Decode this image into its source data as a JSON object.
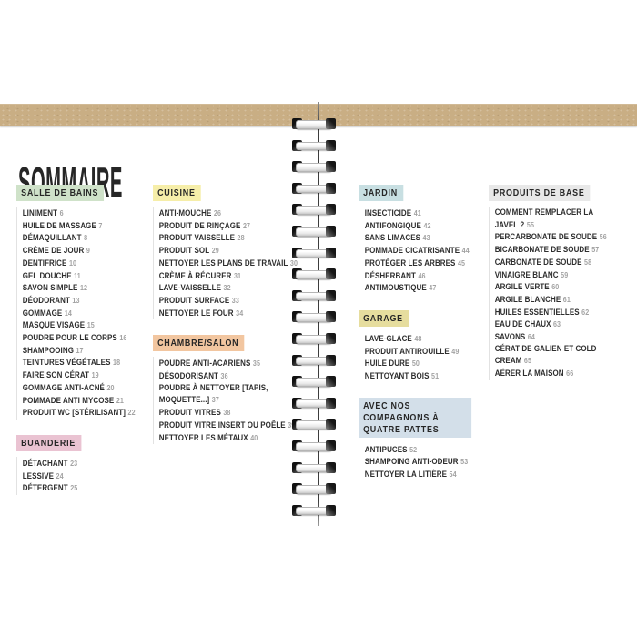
{
  "page": {
    "title": "SOMMAIRE"
  },
  "colors": {
    "kraft_band": "#c9ae84",
    "title_text": "#262626",
    "item_text": "#2e2e2e",
    "page_number": "#a2a2a2",
    "list_rule": "#dcdcdc"
  },
  "binding": {
    "rings": 19
  },
  "sections": [
    {
      "id": "salle-de-bains",
      "label": "SALLE DE BAINS",
      "color": "#cfe2c9",
      "column": 1,
      "items": [
        {
          "t": "LINIMENT",
          "p": "6"
        },
        {
          "t": "HUILE DE MASSAGE",
          "p": "7"
        },
        {
          "t": "DÉMAQUILLANT",
          "p": "8"
        },
        {
          "t": "CRÈME DE JOUR",
          "p": "9"
        },
        {
          "t": "DENTIFRICE",
          "p": "10"
        },
        {
          "t": "GEL DOUCHE",
          "p": "11"
        },
        {
          "t": "SAVON SIMPLE",
          "p": "12"
        },
        {
          "t": "DÉODORANT",
          "p": "13"
        },
        {
          "t": "GOMMAGE",
          "p": "14"
        },
        {
          "t": "MASQUE VISAGE",
          "p": "15"
        },
        {
          "t": "POUDRE POUR LE CORPS",
          "p": "16"
        },
        {
          "t": "SHAMPOOING",
          "p": "17"
        },
        {
          "t": "TEINTURES VÉGÉTALES",
          "p": "18"
        },
        {
          "t": "FAIRE SON CÉRAT",
          "p": "19"
        },
        {
          "t": "GOMMAGE ANTI-ACNÉ",
          "p": "20"
        },
        {
          "t": "POMMADE ANTI MYCOSE",
          "p": "21"
        },
        {
          "t": "PRODUIT WC [STÉRILISANT]",
          "p": "22"
        }
      ]
    },
    {
      "id": "buanderie",
      "label": "BUANDERIE",
      "color": "#eac3d2",
      "column": 1,
      "items": [
        {
          "t": "DÉTACHANT",
          "p": "23"
        },
        {
          "t": "LESSIVE",
          "p": "24"
        },
        {
          "t": "DÉTERGENT",
          "p": "25"
        }
      ]
    },
    {
      "id": "cuisine",
      "label": "CUISINE",
      "color": "#f6eea9",
      "column": 2,
      "items": [
        {
          "t": "ANTI-MOUCHE",
          "p": "26"
        },
        {
          "t": "PRODUIT DE RINÇAGE",
          "p": "27"
        },
        {
          "t": "PRODUIT VAISSELLE",
          "p": "28"
        },
        {
          "t": "PRODUIT SOL",
          "p": "29"
        },
        {
          "t": "NETTOYER LES PLANS DE TRAVAIL",
          "p": "30"
        },
        {
          "t": "CRÈME À RÉCURER",
          "p": "31"
        },
        {
          "t": "LAVE-VAISSELLE",
          "p": "32"
        },
        {
          "t": "PRODUIT SURFACE",
          "p": "33"
        },
        {
          "t": "NETTOYER LE FOUR",
          "p": "34"
        }
      ]
    },
    {
      "id": "chambre-salon",
      "label": "CHAMBRE/SALON",
      "color": "#f2c6a0",
      "column": 2,
      "items": [
        {
          "t": "POUDRE ANTI-ACARIENS",
          "p": "35"
        },
        {
          "t": "DÉSODORISANT",
          "p": "36"
        },
        {
          "t": "POUDRE À NETTOYER [TAPIS,\nMOQUETTE...]",
          "p": "37"
        },
        {
          "t": "PRODUIT VITRES",
          "p": "38"
        },
        {
          "t": "PRODUIT VITRE INSERT OU POÊLE",
          "p": "39"
        },
        {
          "t": "NETTOYER LES MÉTAUX",
          "p": "40"
        }
      ]
    },
    {
      "id": "jardin",
      "label": "JARDIN",
      "color": "#c8dfe2",
      "column": 3,
      "items": [
        {
          "t": "INSECTICIDE",
          "p": "41"
        },
        {
          "t": "ANTIFONGIQUE",
          "p": "42"
        },
        {
          "t": "SANS LIMACES",
          "p": "43"
        },
        {
          "t": "POMMADE CICATRISANTE",
          "p": "44"
        },
        {
          "t": "PROTÉGER LES ARBRES",
          "p": "45"
        },
        {
          "t": "DÉSHERBANT",
          "p": "46"
        },
        {
          "t": "ANTIMOUSTIQUE",
          "p": "47"
        }
      ]
    },
    {
      "id": "garage",
      "label": "GARAGE",
      "color": "#e6dd9e",
      "column": 3,
      "items": [
        {
          "t": "LAVE-GLACE",
          "p": "48"
        },
        {
          "t": "PRODUIT ANTIROUILLE",
          "p": "49"
        },
        {
          "t": "HUILE DURE",
          "p": "50"
        },
        {
          "t": "NETTOYANT BOIS",
          "p": "51"
        }
      ]
    },
    {
      "id": "compagnons",
      "label": "AVEC NOS COMPAGNONS À QUATRE PATTES",
      "color": "#d3dfe9",
      "column": 3,
      "items": [
        {
          "t": "ANTIPUCES",
          "p": "52"
        },
        {
          "t": "SHAMPOING ANTI-ODEUR",
          "p": "53"
        },
        {
          "t": "NETTOYER LA LITIÈRE",
          "p": "54"
        }
      ]
    },
    {
      "id": "produits-de-base",
      "label": "PRODUITS DE BASE",
      "color": "#e8e8e8",
      "column": 4,
      "items": [
        {
          "t": "COMMENT REMPLACER LA\nJAVEL ?",
          "p": "55"
        },
        {
          "t": "PERCARBONATE DE SOUDE",
          "p": "56"
        },
        {
          "t": "BICARBONATE DE SOUDE",
          "p": "57"
        },
        {
          "t": "CARBONATE DE SOUDE",
          "p": "58"
        },
        {
          "t": "VINAIGRE BLANC",
          "p": "59"
        },
        {
          "t": "ARGILE VERTE",
          "p": "60"
        },
        {
          "t": "ARGILE BLANCHE",
          "p": "61"
        },
        {
          "t": "HUILES ESSENTIELLES",
          "p": "62"
        },
        {
          "t": "EAU DE CHAUX",
          "p": "63"
        },
        {
          "t": "SAVONS",
          "p": "64"
        },
        {
          "t": "CÉRAT DE GALIEN ET COLD\nCREAM",
          "p": "65"
        },
        {
          "t": "AÉRER LA MAISON",
          "p": "66"
        }
      ]
    }
  ]
}
